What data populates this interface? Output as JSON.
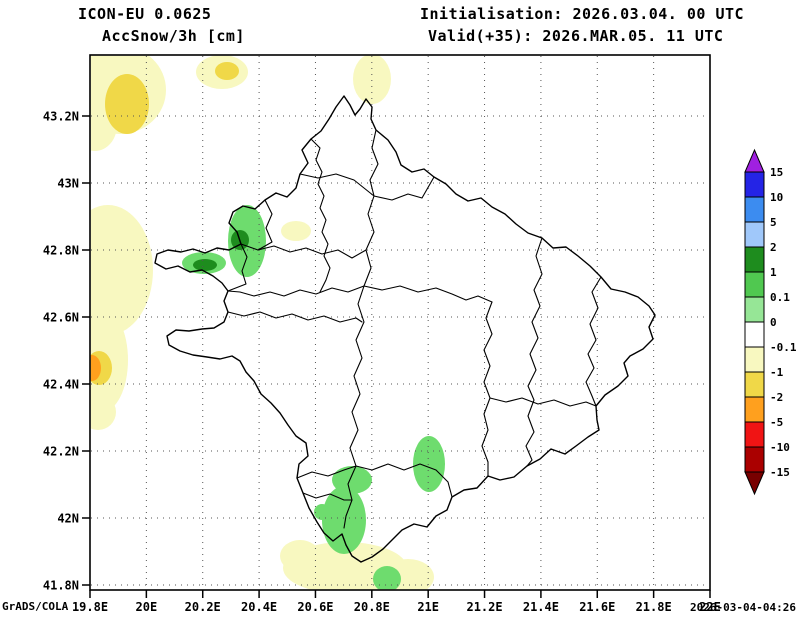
{
  "header": {
    "model_line": "ICON-EU 0.0625",
    "variable_line": "AccSnow/3h [cm]",
    "init_line": "Initialisation: 2026.03.04. 00 UTC",
    "valid_line": "Valid(+35): 2026.MAR.05. 11 UTC"
  },
  "axes": {
    "lat_labels": [
      "43.2N",
      "43N",
      "42.8N",
      "42.6N",
      "42.4N",
      "42.2N",
      "42N",
      "41.8N"
    ],
    "lon_labels": [
      "19.8E",
      "20E",
      "20.2E",
      "20.4E",
      "20.6E",
      "20.8E",
      "21E",
      "21.2E",
      "21.4E",
      "21.6E",
      "21.8E",
      "22E"
    ]
  },
  "colorbar": {
    "tick_labels": [
      "15",
      "10",
      "5",
      "2",
      "1",
      "0.1",
      "0",
      "-0.1",
      "-1",
      "-2",
      "-5",
      "-10",
      "-15"
    ],
    "above_color": "#a020e0",
    "band_colors": [
      "#2424e6",
      "#3c8cf0",
      "#a0c8fa",
      "#1e8c1e",
      "#50c850",
      "#96e696",
      "#ffffff",
      "#f8f8c0",
      "#f0d848",
      "#ffa01e",
      "#f01414",
      "#aa0000"
    ],
    "below_color": "#780000"
  },
  "map_fill_colors": {
    "pale_yellow": "#f8f8c0",
    "gold": "#f0d848",
    "orange": "#ffa01e",
    "light_green": "#6edc6e",
    "dark_green": "#1e8c1e"
  },
  "footer": {
    "credit": "GrADS/COLA",
    "timestamp": "2026-03-04-04:26"
  }
}
